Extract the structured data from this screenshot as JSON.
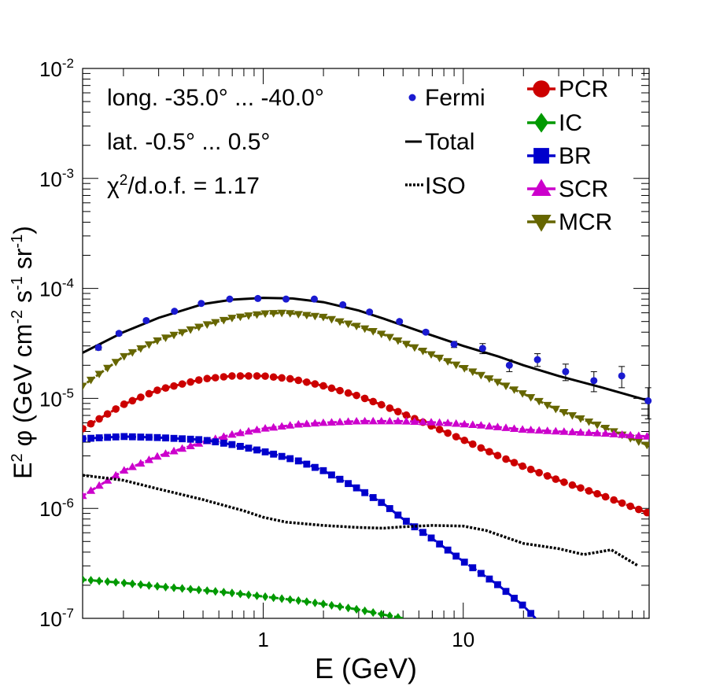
{
  "chart_data": {
    "type": "line",
    "scale": {
      "x": "log",
      "y": "log"
    },
    "xlim": [
      0.125,
      85
    ],
    "ylim": [
      1e-07,
      0.01
    ],
    "xlabel": "E (GeV)",
    "ylabel_parts": {
      "base": "E",
      "exp": "2",
      "phi": " φ (GeV cm",
      "e1": "-2",
      "s": " s",
      "e2": "-1",
      "sr": " sr",
      "e3": "-1",
      "close": ")"
    },
    "x_tick_labels": [
      {
        "value": 1,
        "label": "1"
      },
      {
        "value": 10,
        "label": "10"
      }
    ],
    "y_tick_labels": [
      {
        "value": 0.01,
        "base": "10",
        "exp": "-2"
      },
      {
        "value": 0.001,
        "base": "10",
        "exp": "-3"
      },
      {
        "value": 0.0001,
        "base": "10",
        "exp": "-4"
      },
      {
        "value": 1e-05,
        "base": "10",
        "exp": "-5"
      },
      {
        "value": 1e-06,
        "base": "10",
        "exp": "-6"
      },
      {
        "value": 1e-07,
        "base": "10",
        "exp": "-7"
      }
    ],
    "annotations": {
      "longitude": "long. -35.0° ... -40.0°",
      "latitude": "lat. -0.5° ... 0.5°",
      "chi2_symbol": "χ",
      "chi2_exp": "2",
      "chi2_rest": "/d.o.f. = 1.17"
    },
    "legend_left": [
      {
        "name": "Fermi",
        "style": "marker"
      },
      {
        "name": "Total",
        "style": "solid"
      },
      {
        "name": "ISO",
        "style": "dotted"
      }
    ],
    "legend_right": [
      {
        "name": "PCR",
        "color": "#cc0000",
        "marker": "circle"
      },
      {
        "name": "IC",
        "color": "#009900",
        "marker": "diamond"
      },
      {
        "name": "BR",
        "color": "#0000cc",
        "marker": "square"
      },
      {
        "name": "SCR",
        "color": "#cc00cc",
        "marker": "triangle-up"
      },
      {
        "name": "MCR",
        "color": "#666600",
        "marker": "triangle-down"
      }
    ],
    "fermi_points": [
      {
        "x": 0.15,
        "y": 2.9e-05,
        "err": 1.5e-06
      },
      {
        "x": 0.19,
        "y": 3.9e-05,
        "err": 1.5e-06
      },
      {
        "x": 0.26,
        "y": 5.1e-05,
        "err": 1.5e-06
      },
      {
        "x": 0.36,
        "y": 6.2e-05,
        "err": 1.5e-06
      },
      {
        "x": 0.49,
        "y": 7.3e-05,
        "err": 1.5e-06
      },
      {
        "x": 0.68,
        "y": 8e-05,
        "err": 1.5e-06
      },
      {
        "x": 0.94,
        "y": 8.1e-05,
        "err": 1.5e-06
      },
      {
        "x": 1.3,
        "y": 8e-05,
        "err": 1.5e-06
      },
      {
        "x": 1.8,
        "y": 8e-05,
        "err": 1.5e-06
      },
      {
        "x": 2.5,
        "y": 7.1e-05,
        "err": 1.5e-06
      },
      {
        "x": 3.4,
        "y": 6.1e-05,
        "err": 1.5e-06
      },
      {
        "x": 4.8,
        "y": 5e-05,
        "err": 1.5e-06
      },
      {
        "x": 6.5,
        "y": 4e-05,
        "err": 1.5e-06
      },
      {
        "x": 9.0,
        "y": 3.1e-05,
        "err": 2e-06
      },
      {
        "x": 12.5,
        "y": 2.85e-05,
        "err": 3e-06
      },
      {
        "x": 17.0,
        "y": 2e-05,
        "err": 2.5e-06
      },
      {
        "x": 23.5,
        "y": 2.25e-05,
        "err": 3e-06
      },
      {
        "x": 32.5,
        "y": 1.75e-05,
        "err": 3e-06
      },
      {
        "x": 45.0,
        "y": 1.45e-05,
        "err": 3e-06
      },
      {
        "x": 62.0,
        "y": 1.6e-05,
        "err": 3.5e-06
      },
      {
        "x": 84.0,
        "y": 9.5e-06,
        "err": 3e-06
      }
    ],
    "series": [
      {
        "name": "Total",
        "color": "#000000",
        "style": "solid",
        "marker": "none",
        "x": [
          0.125,
          0.2,
          0.3,
          0.5,
          0.7,
          1.0,
          1.4,
          2.0,
          3.0,
          4.0,
          6.0,
          10.0,
          15.0,
          20.0,
          30.0,
          50.0,
          85.0
        ],
        "y": [
          2.6e-05,
          4e-05,
          5.4e-05,
          7.2e-05,
          7.9e-05,
          8.2e-05,
          8.1e-05,
          7.5e-05,
          6.3e-05,
          5.3e-05,
          4.1e-05,
          3e-05,
          2.4e-05,
          2e-05,
          1.6e-05,
          1.25e-05,
          9.5e-06
        ]
      },
      {
        "name": "MCR",
        "color": "#666600",
        "style": "dashed",
        "marker": "triangle-down",
        "x": [
          0.125,
          0.2,
          0.3,
          0.5,
          0.7,
          1.0,
          1.3,
          2.0,
          3.0,
          4.0,
          6.0,
          10.0,
          15.0,
          20.0,
          30.0,
          50.0,
          85.0
        ],
        "y": [
          1.3e-05,
          2.4e-05,
          3.4e-05,
          4.6e-05,
          5.4e-05,
          5.9e-05,
          6e-05,
          5.5e-05,
          4.5e-05,
          3.8e-05,
          2.8e-05,
          1.9e-05,
          1.4e-05,
          1.1e-05,
          7.8e-06,
          5.5e-06,
          3.7e-06
        ]
      },
      {
        "name": "PCR",
        "color": "#cc0000",
        "style": "dashed",
        "marker": "circle",
        "x": [
          0.125,
          0.2,
          0.3,
          0.5,
          0.7,
          1.0,
          1.4,
          2.0,
          3.0,
          4.0,
          6.0,
          10.0,
          15.0,
          20.0,
          30.0,
          50.0,
          85.0
        ],
        "y": [
          5.3e-06,
          8.8e-06,
          1.2e-05,
          1.5e-05,
          1.6e-05,
          1.6e-05,
          1.5e-05,
          1.3e-05,
          1.05e-05,
          8.6e-06,
          6.3e-06,
          4.2e-06,
          3e-06,
          2.4e-06,
          1.8e-06,
          1.3e-06,
          9e-07
        ]
      },
      {
        "name": "SCR",
        "color": "#cc00cc",
        "style": "dashed",
        "marker": "triangle-up",
        "x": [
          0.125,
          0.2,
          0.3,
          0.5,
          0.7,
          1.0,
          1.5,
          2.0,
          3.0,
          5.0,
          8.0,
          12.0,
          20.0,
          30.0,
          50.0,
          85.0
        ],
        "y": [
          1.3e-06,
          2.2e-06,
          3e-06,
          4e-06,
          4.7e-06,
          5.3e-06,
          5.8e-06,
          6e-06,
          6.2e-06,
          6.2e-06,
          6e-06,
          5.7e-06,
          5.2e-06,
          5e-06,
          4.8e-06,
          4.5e-06
        ]
      },
      {
        "name": "BR",
        "color": "#0000cc",
        "style": "dashed",
        "marker": "square",
        "x": [
          0.125,
          0.2,
          0.3,
          0.5,
          0.7,
          1.0,
          1.5,
          2.0,
          3.0,
          4.0,
          5.0,
          7.0,
          10.0,
          15.0,
          20.0,
          23.0
        ],
        "y": [
          4.3e-06,
          4.5e-06,
          4.4e-06,
          4.2e-06,
          3.8e-06,
          3.3e-06,
          2.7e-06,
          2.2e-06,
          1.5e-06,
          1.1e-06,
          8e-07,
          5.3e-07,
          3.3e-07,
          2e-07,
          1.3e-07,
          1e-07
        ]
      },
      {
        "name": "ISO",
        "color": "#000000",
        "style": "dotted",
        "marker": "none",
        "x": [
          0.125,
          0.2,
          0.3,
          0.5,
          0.8,
          1.0,
          1.3,
          2.0,
          3.0,
          4.0,
          5.0,
          7.0,
          10.0,
          13.0,
          20.0,
          30.0,
          40.0,
          55.0,
          75.0
        ],
        "y": [
          2e-06,
          1.8e-06,
          1.5e-06,
          1.2e-06,
          9.5e-07,
          8.3e-07,
          7.5e-07,
          7e-07,
          6.7e-07,
          6.6e-07,
          6.8e-07,
          7e-07,
          6.9e-07,
          6.3e-07,
          4.8e-07,
          4.3e-07,
          3.8e-07,
          4.2e-07,
          3e-07
        ]
      },
      {
        "name": "IC",
        "color": "#009900",
        "style": "dashed",
        "marker": "diamond",
        "x": [
          0.125,
          0.2,
          0.3,
          0.5,
          0.7,
          1.0,
          1.5,
          2.0,
          3.0,
          4.0,
          5.0
        ],
        "y": [
          2.25e-07,
          2.1e-07,
          1.95e-07,
          1.8e-07,
          1.7e-07,
          1.58e-07,
          1.45e-07,
          1.35e-07,
          1.2e-07,
          1.08e-07,
          1e-07
        ]
      }
    ]
  }
}
